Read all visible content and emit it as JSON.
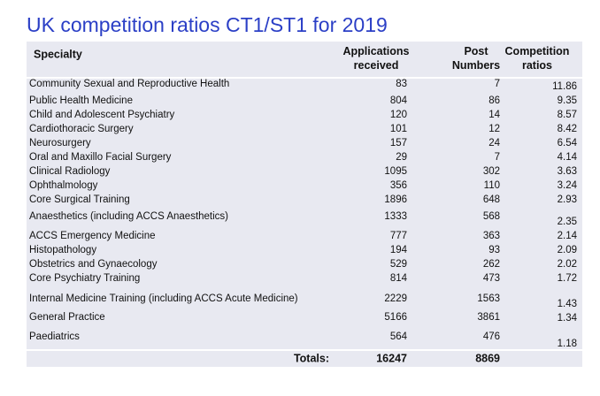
{
  "title": "UK competition ratios CT1/ST1 for 2019",
  "table": {
    "header": [
      "Specialty",
      "Applications received",
      "Post Numbers",
      "Competition ratios"
    ],
    "rows": [
      [
        "Community Sexual and Reproductive Health",
        83,
        7,
        11.86
      ],
      [
        "Public Health Medicine",
        804,
        86,
        9.35
      ],
      [
        "Child and Adolescent Psychiatry",
        120,
        14,
        8.57
      ],
      [
        "Cardiothoracic Surgery",
        101,
        12,
        8.42
      ],
      [
        "Neurosurgery",
        157,
        24,
        6.54
      ],
      [
        "Oral and Maxillo Facial Surgery",
        29,
        7,
        4.14
      ],
      [
        "Clinical Radiology",
        1095,
        302,
        3.63
      ],
      [
        "Ophthalmology",
        356,
        110,
        3.24
      ],
      [
        "Core Surgical Training",
        1896,
        648,
        2.93
      ],
      [
        "Anaesthetics (including ACCS Anaesthetics)",
        1333,
        568,
        2.35
      ],
      [
        "ACCS Emergency Medicine",
        777,
        363,
        2.14
      ],
      [
        "Histopathology",
        194,
        93,
        2.09
      ],
      [
        "Obstetrics and Gynaecology",
        529,
        262,
        2.02
      ],
      [
        "Core Psychiatry Training",
        814,
        473,
        1.72
      ],
      [
        "Internal Medicine Training (including ACCS Acute Medicine)",
        2229,
        1563,
        1.43
      ],
      [
        "General Practice",
        5166,
        3861,
        1.34
      ],
      [
        "Paediatrics",
        564,
        476,
        1.18
      ]
    ],
    "totals": [
      "Totals:",
      16247,
      8869
    ]
  }
}
